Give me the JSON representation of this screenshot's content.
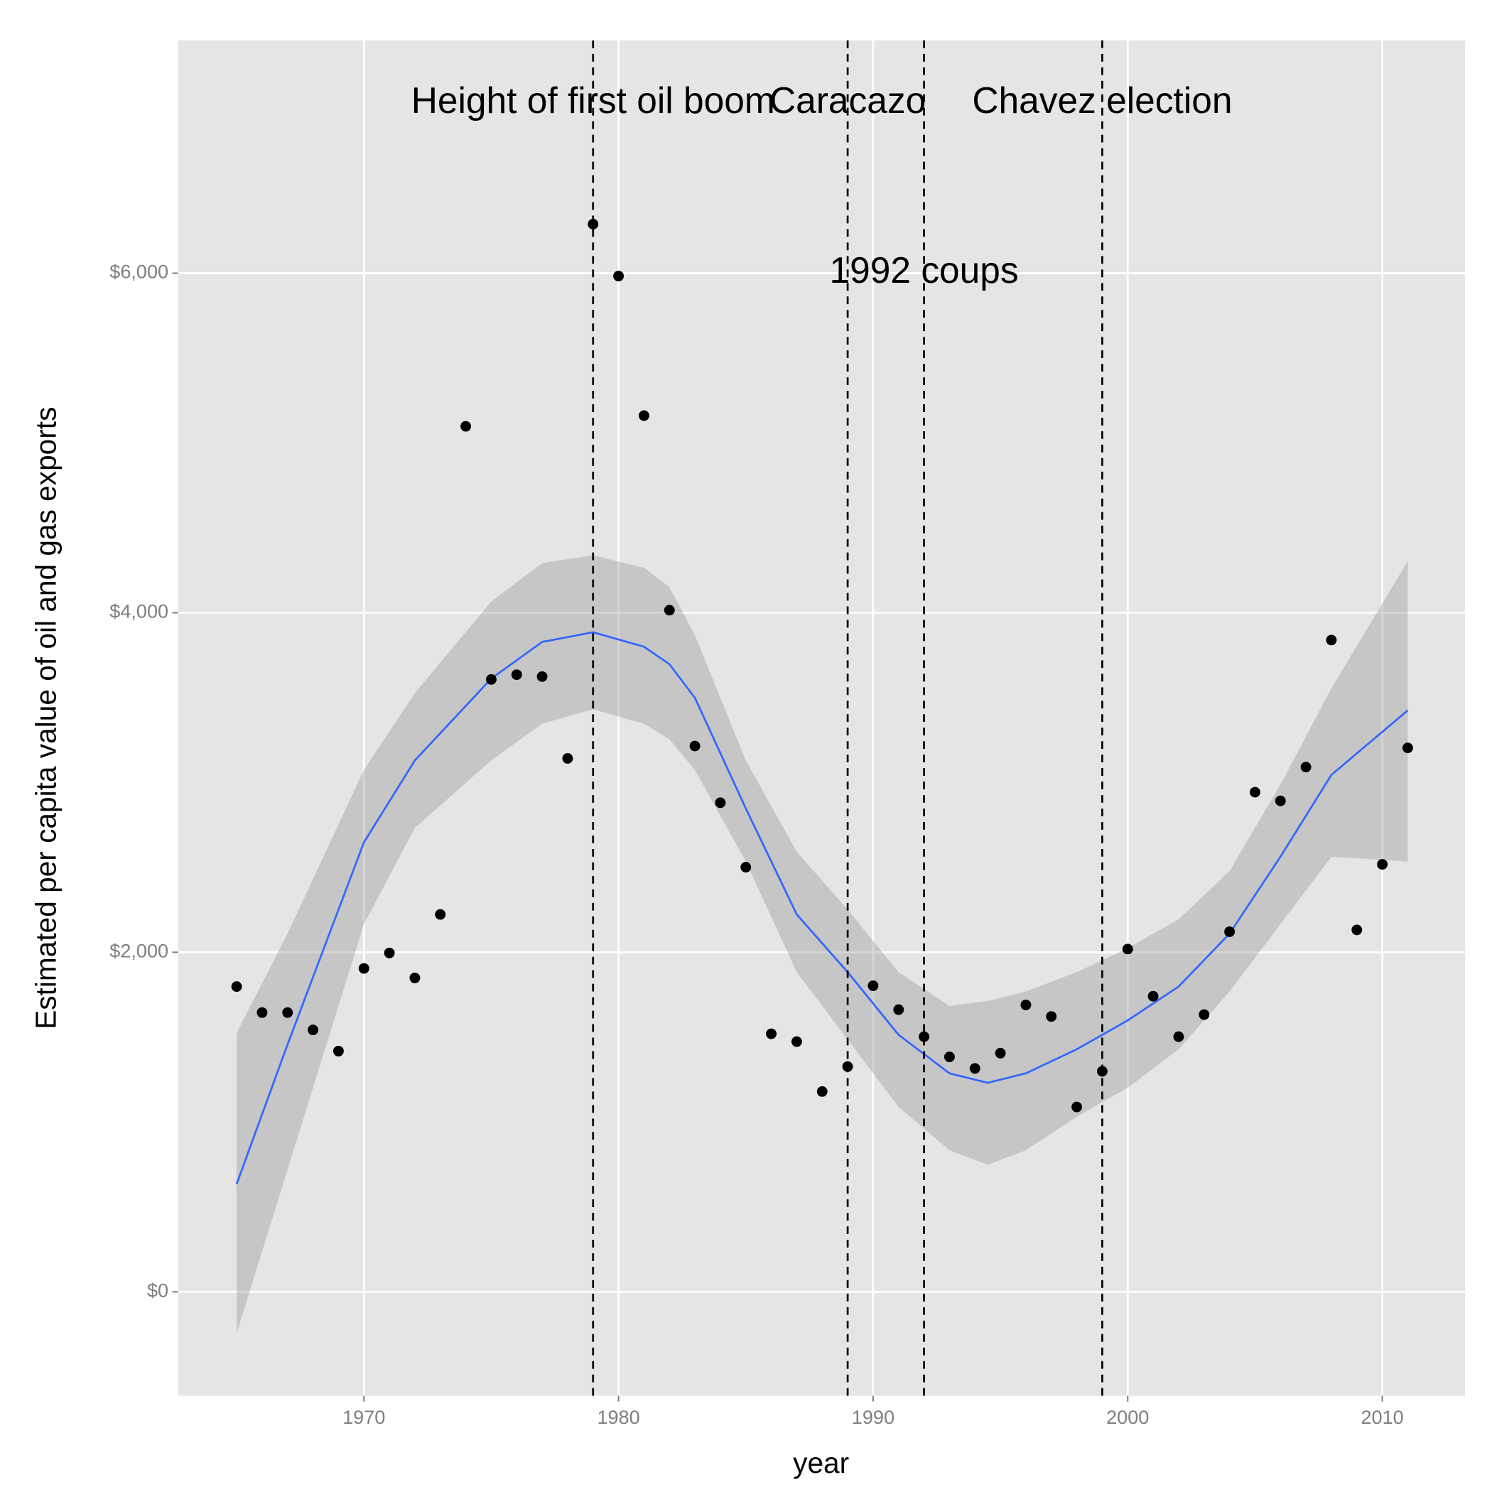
{
  "chart_data": {
    "type": "scatter",
    "xlabel": "year",
    "ylabel": "Estimated per capita value of oil and gas exports",
    "xlim": [
      1962.7,
      2013.25
    ],
    "ylim": [
      -612,
      7371
    ],
    "xticks": [
      1970,
      1980,
      1990,
      2000,
      2010
    ],
    "yticks": [
      {
        "value": 0,
        "label": "$0"
      },
      {
        "value": 2000,
        "label": "$2,000"
      },
      {
        "value": 4000,
        "label": "$4,000"
      },
      {
        "value": 6000,
        "label": "$6,000"
      }
    ],
    "grid": true,
    "x": [
      1965,
      1966,
      1967,
      1968,
      1969,
      1970,
      1971,
      1972,
      1973,
      1974,
      1975,
      1976,
      1977,
      1978,
      1979,
      1980,
      1981,
      1982,
      1983,
      1984,
      1985,
      1986,
      1987,
      1988,
      1989,
      1990,
      1991,
      1992,
      1993,
      1994,
      1995,
      1996,
      1997,
      1998,
      1999,
      2000,
      2001,
      2002,
      2003,
      2004,
      2005,
      2006,
      2007,
      2008,
      2009,
      2010,
      2011
    ],
    "values": [
      1798,
      1645,
      1645,
      1543,
      1418,
      1905,
      1996,
      1849,
      2223,
      5098,
      3607,
      3635,
      3624,
      3142,
      6289,
      5983,
      5161,
      4015,
      3215,
      2881,
      2501,
      1520,
      1474,
      1180,
      1327,
      1803,
      1662,
      1503,
      1384,
      1316,
      1406,
      1690,
      1622,
      1089,
      1299,
      2019,
      1741,
      1503,
      1633,
      2121,
      2943,
      2892,
      3091,
      3839,
      2132,
      2518,
      3204
    ],
    "color": "#000000",
    "smooth": {
      "color": "#3366FF",
      "band_color": "#999999",
      "x": [
        1965,
        1967,
        1970,
        1972,
        1975,
        1977,
        1979,
        1981,
        1982,
        1983,
        1985,
        1987,
        1989,
        1991,
        1993,
        1994.5,
        1996,
        1998,
        2000,
        2002,
        2004,
        2006,
        2008,
        2011
      ],
      "values": [
        635,
        1457,
        2648,
        3130,
        3612,
        3828,
        3885,
        3800,
        3697,
        3499,
        2847,
        2223,
        1883,
        1514,
        1287,
        1231,
        1287,
        1429,
        1599,
        1798,
        2110,
        2563,
        3045,
        3425
      ],
      "lower": [
        -244,
        720,
        2166,
        2733,
        3130,
        3346,
        3431,
        3346,
        3255,
        3074,
        2535,
        1883,
        1486,
        1089,
        834,
        749,
        834,
        1032,
        1202,
        1429,
        1769,
        2166,
        2563,
        2535
      ],
      "upper": [
        1525,
        2110,
        3074,
        3527,
        4066,
        4293,
        4338,
        4265,
        4151,
        3868,
        3130,
        2592,
        2251,
        1883,
        1684,
        1713,
        1769,
        1883,
        2024,
        2194,
        2478,
        2988,
        3555,
        4304
      ]
    },
    "vlines": [
      1979,
      1989,
      1992,
      1999
    ],
    "annotations": [
      {
        "x": 1979,
        "y": 7000,
        "label": "Height of first oil boom"
      },
      {
        "x": 1989,
        "y": 7000,
        "label": "Caracazo"
      },
      {
        "x": 1999,
        "y": 7000,
        "label": "Chavez election"
      },
      {
        "x": 1992,
        "y": 6000,
        "label": "1992 coups"
      }
    ]
  }
}
